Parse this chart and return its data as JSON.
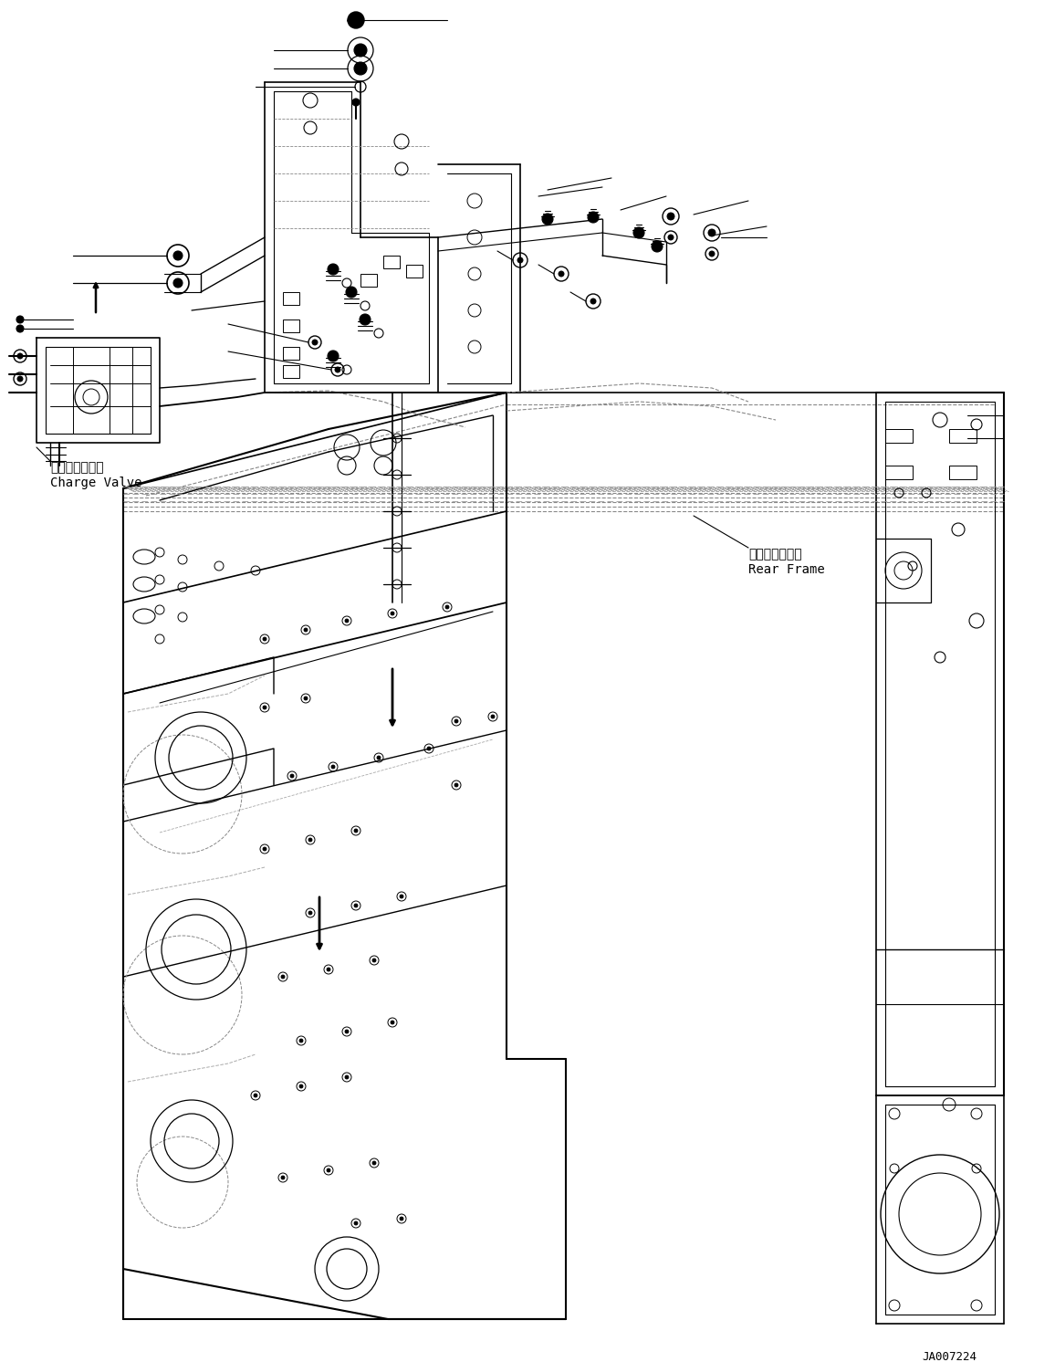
{
  "background_color": "#ffffff",
  "figsize": [
    11.56,
    14.92
  ],
  "dpi": 100,
  "label_charge_valve_jp": "チャージバルブ",
  "label_charge_valve_en": "Charge Valve",
  "label_rear_frame_jp": "リヤーフレーム",
  "label_rear_frame_en": "Rear Frame",
  "label_code": "JA007224",
  "line_color": "#000000",
  "text_color": "#000000"
}
